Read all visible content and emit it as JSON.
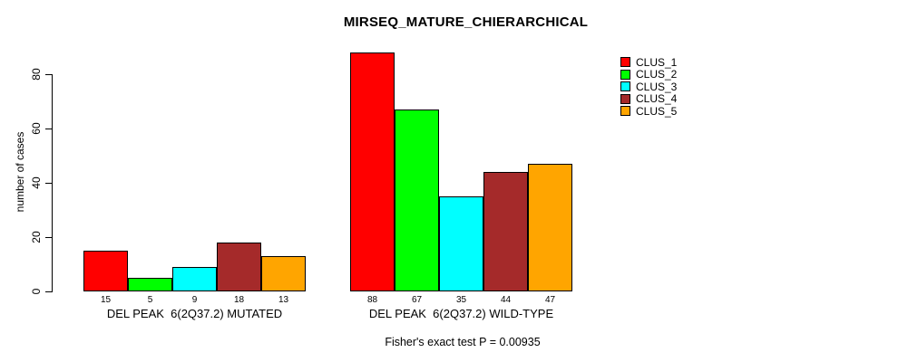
{
  "chart_data": {
    "type": "bar",
    "title": "MIRSEQ_MATURE_CHIERARCHICAL",
    "ylabel": "number of cases",
    "xlabel": "",
    "annotation": "Fisher's exact test P = 0.00935",
    "ylim": [
      0,
      80
    ],
    "yticks": [
      0,
      20,
      40,
      60,
      80
    ],
    "grid": false,
    "legend_position": "top-right",
    "bar_border_color": "#000000",
    "categories": [
      "DEL PEAK  6(2Q37.2) MUTATED",
      "DEL PEAK  6(2Q37.2) WILD-TYPE"
    ],
    "series": [
      {
        "name": "CLUS_1",
        "color": "#FF0000",
        "values": [
          15,
          88
        ]
      },
      {
        "name": "CLUS_2",
        "color": "#00FF00",
        "values": [
          5,
          67
        ]
      },
      {
        "name": "CLUS_3",
        "color": "#00FFFF",
        "values": [
          9,
          35
        ]
      },
      {
        "name": "CLUS_4",
        "color": "#A52A2A",
        "values": [
          18,
          44
        ]
      },
      {
        "name": "CLUS_5",
        "color": "#FFA500",
        "values": [
          13,
          47
        ]
      }
    ]
  }
}
